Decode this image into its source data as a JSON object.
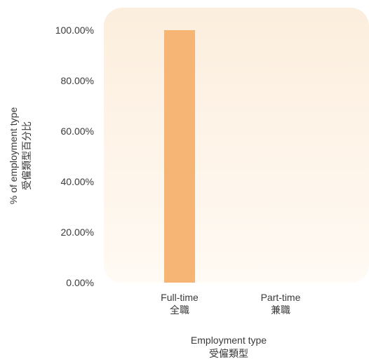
{
  "chart_data": {
    "type": "bar",
    "categories": [
      "Full-time\n全職",
      "Part-time\n兼職"
    ],
    "values": [
      100,
      0
    ],
    "ylim": [
      0,
      100
    ],
    "yticks": [
      "0.00%",
      "20.00%",
      "40.00%",
      "60.00%",
      "80.00%",
      "100.00%"
    ],
    "ytick_values": [
      0,
      20,
      40,
      60,
      80,
      100
    ],
    "xlabel": "Employment type\n受僱類型",
    "ylabel": "% of employment type\n受僱類型百分比",
    "grid": false,
    "legend": "none",
    "colors": {
      "bar": "#F6B574",
      "panel_top": "#FCEEDD",
      "panel_bottom": "#FFFAF4",
      "text": "#3a3a3a"
    }
  }
}
